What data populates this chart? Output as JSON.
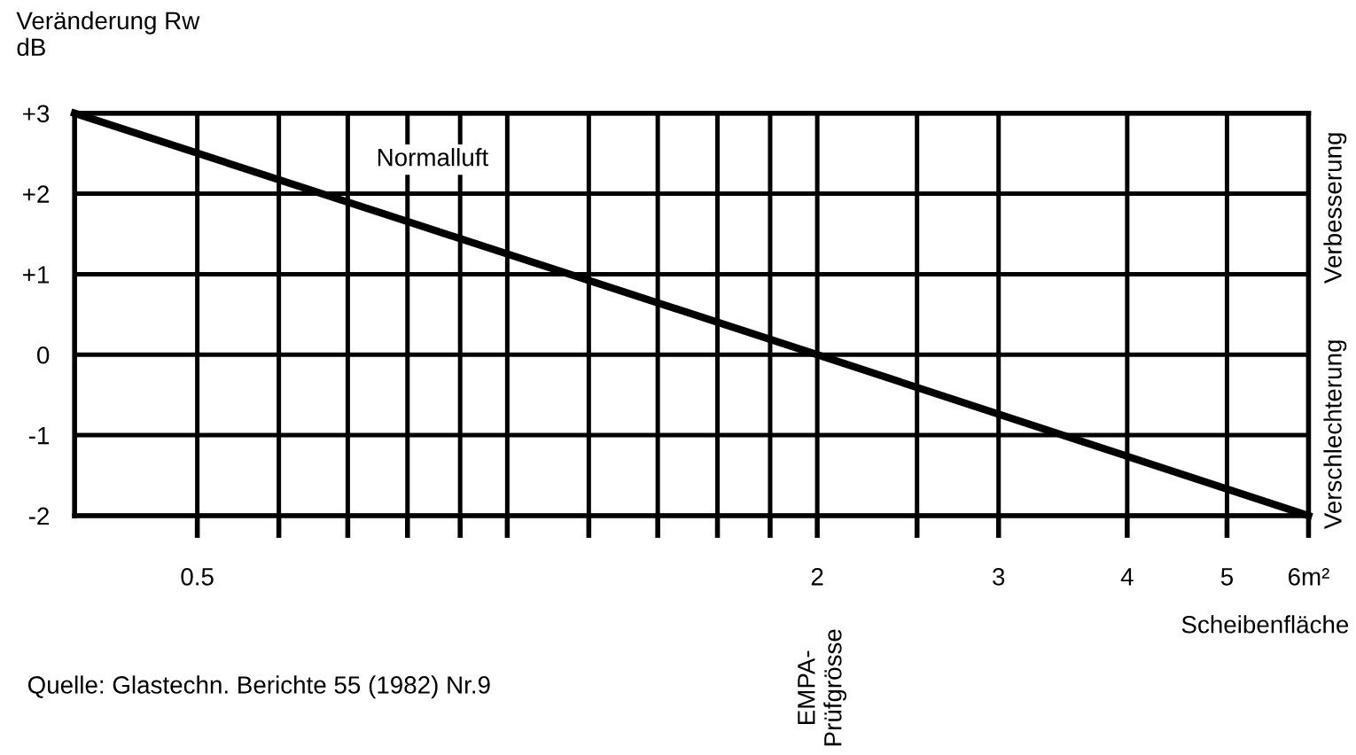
{
  "chart_data": {
    "type": "line",
    "ylabel": "Veränderung Rw\ndB",
    "xlabel": "Scheibenfläche",
    "series": [
      {
        "name": "Normalluft",
        "color": "#000000",
        "x": [
          0.38,
          2,
          6
        ],
        "values": [
          3,
          0,
          -2
        ]
      }
    ],
    "log": "x",
    "xlim": [
      0.38,
      6
    ],
    "xticks": [
      {
        "value": 0.5,
        "label": "0.5"
      },
      {
        "value": 0.6,
        "label": null
      },
      {
        "value": 0.7,
        "label": null
      },
      {
        "value": 0.8,
        "label": null
      },
      {
        "value": 0.9,
        "label": null
      },
      {
        "value": 1,
        "label": null
      },
      {
        "value": 1.2,
        "label": null
      },
      {
        "value": 1.4,
        "label": null
      },
      {
        "value": 1.6,
        "label": null
      },
      {
        "value": 1.8,
        "label": null
      },
      2,
      {
        "value": 2.5,
        "label": null
      },
      3,
      4,
      5,
      {
        "value": 6,
        "label": "6m²"
      }
    ],
    "ylim": [
      -2,
      3
    ],
    "yticks": [
      -2,
      -1,
      0,
      {
        "value": 1,
        "label": "+1"
      },
      {
        "value": 2,
        "label": "+2"
      },
      {
        "value": 3,
        "label": "+3"
      }
    ],
    "grid": true,
    "annotations": [
      "Verbesserung",
      "Verschlechterung",
      "Quelle: Glastechn. Berichte 55 (1982) Nr.9",
      "EMPA-\nPrüfgrösse"
    ]
  }
}
